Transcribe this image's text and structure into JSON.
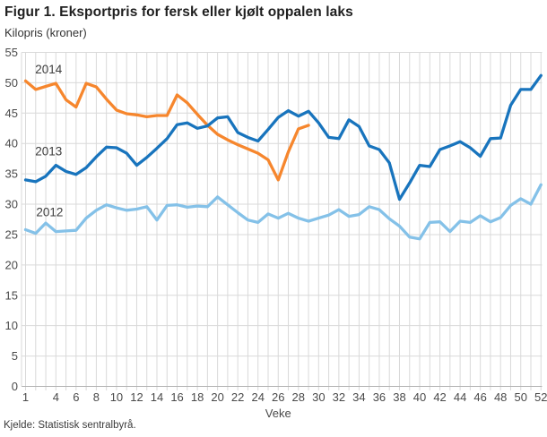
{
  "header": {
    "title": "Figur 1. Eksportpris for fersk eller kjølt oppalen laks",
    "subtitle": "Kilopris (kroner)"
  },
  "footer": {
    "source": "Kjelde: Statistisk sentralbyrå."
  },
  "colors": {
    "grid": "#d9d9d9",
    "axis": "#b3b3b3",
    "tick_text": "#4a4a4a",
    "annotation_text": "#3d3d3d",
    "series_2014": "#f6862d",
    "series_2013": "#1874bd",
    "series_2012": "#84c1e8"
  },
  "chart_data": {
    "type": "line",
    "title": "Figur 1. Eksportpris for fersk eller kjølt oppalen laks",
    "ylabel": "Kilopris (kroner)",
    "xlabel": "Veke",
    "ylim": [
      0,
      55
    ],
    "x_range": [
      1,
      52
    ],
    "grid": true,
    "legend_position": "inline-labels",
    "yticks": [
      55,
      50,
      45,
      40,
      35,
      30,
      25,
      20,
      15,
      10,
      5,
      0
    ],
    "xticks": [
      1,
      4,
      6,
      8,
      10,
      12,
      14,
      16,
      18,
      20,
      22,
      24,
      26,
      28,
      30,
      32,
      34,
      36,
      38,
      40,
      42,
      44,
      46,
      48,
      50,
      52
    ],
    "series": [
      {
        "name": "2014",
        "color_key": "series_2014",
        "start_week": 1,
        "values": [
          50.3,
          48.9,
          49.4,
          49.9,
          47.2,
          46.0,
          49.9,
          49.3,
          47.3,
          45.5,
          44.9,
          44.7,
          44.4,
          44.6,
          44.6,
          48.0,
          46.7,
          44.8,
          43.0,
          41.5,
          40.6,
          39.8,
          39.1,
          38.4,
          37.3,
          34.0,
          38.6,
          42.4,
          43.0
        ]
      },
      {
        "name": "2013",
        "color_key": "series_2013",
        "start_week": 1,
        "values": [
          34.0,
          33.7,
          34.6,
          36.4,
          35.4,
          34.9,
          36.0,
          37.8,
          39.4,
          39.3,
          38.4,
          36.4,
          37.7,
          39.2,
          40.8,
          43.1,
          43.4,
          42.5,
          42.9,
          44.2,
          44.4,
          41.8,
          41.0,
          40.4,
          42.3,
          44.3,
          45.4,
          44.5,
          45.3,
          43.4,
          41.0,
          40.8,
          43.9,
          42.8,
          39.6,
          39.0,
          36.8,
          30.8,
          33.5,
          36.4,
          36.2,
          39.0,
          39.6,
          40.3,
          39.3,
          37.9,
          40.8,
          40.9,
          46.3,
          48.9,
          48.9,
          51.2
        ]
      },
      {
        "name": "2012",
        "color_key": "series_2012",
        "start_week": 1,
        "values": [
          25.8,
          25.2,
          26.9,
          25.5,
          25.6,
          25.7,
          27.7,
          29.0,
          29.9,
          29.4,
          29.0,
          29.2,
          29.6,
          27.4,
          29.8,
          29.9,
          29.5,
          29.7,
          29.6,
          31.2,
          29.9,
          28.6,
          27.4,
          27.0,
          28.4,
          27.7,
          28.5,
          27.7,
          27.2,
          27.7,
          28.2,
          29.1,
          28.0,
          28.3,
          29.6,
          29.1,
          27.6,
          26.4,
          24.6,
          24.3,
          27.0,
          27.1,
          25.5,
          27.2,
          27.0,
          28.1,
          27.1,
          27.8,
          29.8,
          30.9,
          30.0,
          33.2
        ]
      }
    ],
    "annotations": [
      {
        "text": "2014",
        "week": 1.95,
        "value": 52.2
      },
      {
        "text": "2013",
        "week": 1.95,
        "value": 38.7
      },
      {
        "text": "2012",
        "week": 2.05,
        "value": 28.7
      }
    ]
  }
}
